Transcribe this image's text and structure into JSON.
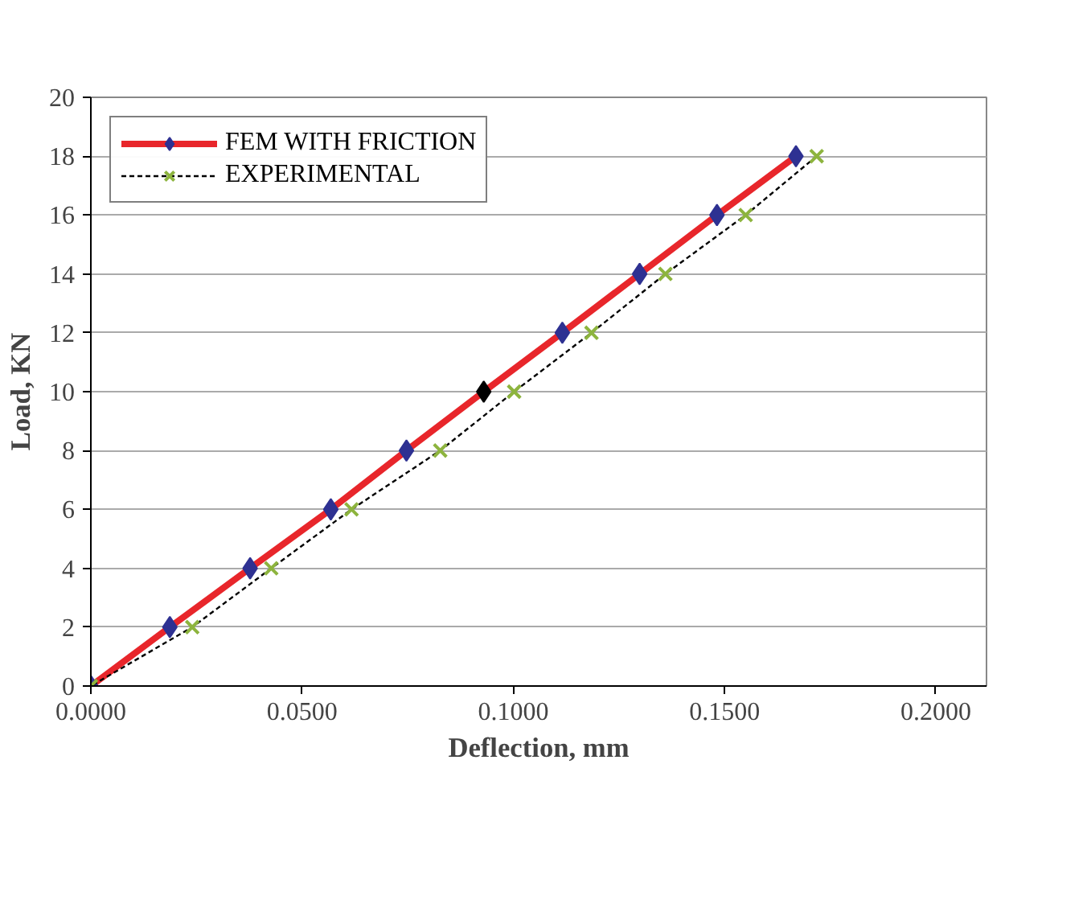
{
  "chart_data": {
    "type": "line",
    "xlabel": "Deflection, mm",
    "ylabel": "Load, KN",
    "xlim": [
      0,
      0.212
    ],
    "ylim": [
      0,
      20
    ],
    "xticks": [
      {
        "value": 0,
        "label": "0.0000"
      },
      {
        "value": 0.05,
        "label": "0.0500"
      },
      {
        "value": 0.1,
        "label": "0.1000"
      },
      {
        "value": 0.15,
        "label": "0.1500"
      },
      {
        "value": 0.2,
        "label": "0.2000"
      }
    ],
    "yticks": [
      0,
      2,
      4,
      6,
      8,
      10,
      12,
      14,
      16,
      18,
      20
    ],
    "grid": "y",
    "legend": "top",
    "series": [
      {
        "name": "FEM WITH FRICTION",
        "color": "#e8262b",
        "marker": "diamond",
        "line_style": "solid",
        "colors": [
          "#2e3192",
          "#2e3192",
          "#2e3192",
          "#2e3192",
          "#2e3192",
          "#000000",
          "#2e3192",
          "#2e3192",
          "#2e3192",
          "#2e3192"
        ],
        "x": [
          0,
          0.0187,
          0.0377,
          0.0568,
          0.0747,
          0.093,
          0.1116,
          0.1299,
          0.1482,
          0.1669
        ],
        "values": [
          0,
          2,
          4,
          6,
          8,
          10,
          12,
          14,
          16,
          18
        ]
      },
      {
        "name": "EXPERIMENTAL",
        "color": "#000000",
        "marker": "cross",
        "line_style": "dashed",
        "colors": [
          "#8db43e",
          "#8db43e",
          "#8db43e",
          "#8db43e",
          "#8db43e",
          "#8db43e",
          "#8db43e",
          "#8db43e",
          "#8db43e",
          "#8db43e"
        ],
        "x": [
          0,
          0.024,
          0.0427,
          0.0617,
          0.0827,
          0.1002,
          0.1185,
          0.136,
          0.155,
          0.1718
        ],
        "values": [
          0,
          2,
          4,
          6,
          8,
          10,
          12,
          14,
          16,
          18
        ]
      }
    ]
  }
}
